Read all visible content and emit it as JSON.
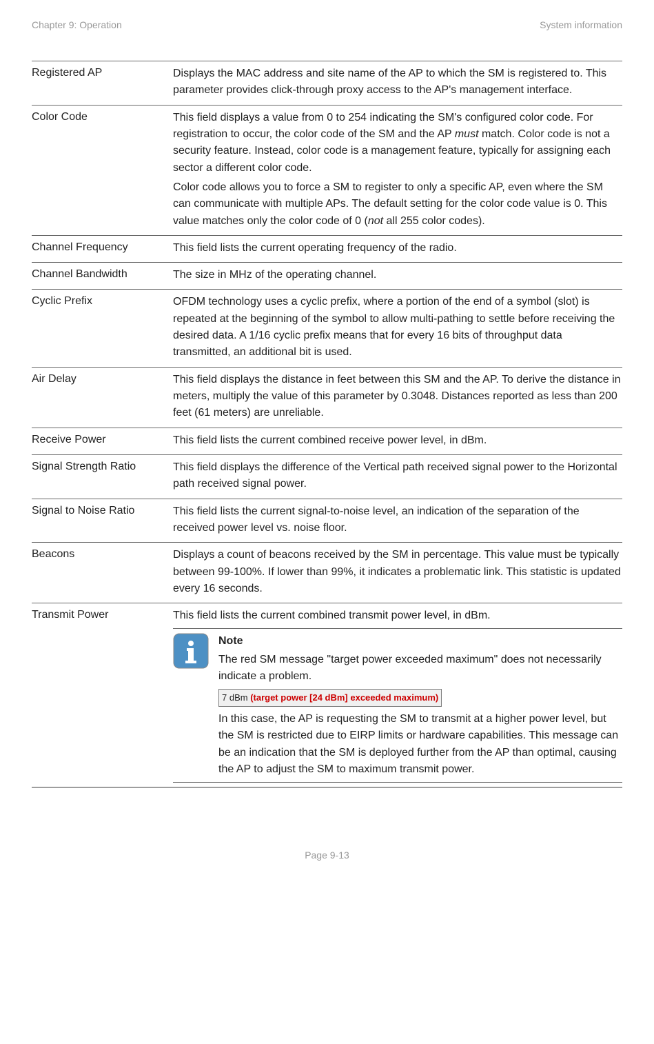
{
  "header": {
    "left": "Chapter 9:  Operation",
    "right": "System information"
  },
  "rows": [
    {
      "label": "Registered AP",
      "desc": "Displays the MAC address and site name of the AP to which the SM is registered to. This parameter provides click-through proxy access to the AP's management interface."
    },
    {
      "label": "Color Code",
      "desc_html": "This field displays a value from 0 to 254 indicating the SM's configured color code. For registration to occur, the color code of the SM and the AP <span class=\"italic\">must</span> match. Color code is not a security feature. Instead, color code is a management feature, typically for assigning each sector a different color code.",
      "desc2_html": "Color code allows you to force a SM to register to only a specific AP, even where the SM can communicate with multiple APs. The default setting for the color code value is 0. This value matches only the color code of 0 (<span class=\"italic\">not</span> all 255 color codes)."
    },
    {
      "label": "Channel Frequency",
      "desc": "This field lists the current operating frequency of the radio."
    },
    {
      "label": "Channel Bandwidth",
      "desc": "The size in MHz of the operating channel."
    },
    {
      "label": "Cyclic Prefix",
      "desc": "OFDM technology uses a cyclic prefix, where a portion of the end of a symbol (slot) is repeated at the beginning of the symbol to allow multi-pathing to settle before receiving the desired data. A 1/16 cyclic prefix means that for every 16 bits of throughput data transmitted, an additional bit is used."
    },
    {
      "label": "Air Delay",
      "desc": "This field displays the distance in feet between this SM and the AP. To derive the distance in meters, multiply the value of this parameter by 0.3048. Distances reported as less than 200 feet (61 meters) are unreliable."
    },
    {
      "label": "Receive Power",
      "desc": "This field lists the current combined receive power level, in dBm."
    },
    {
      "label": "Signal Strength Ratio",
      "desc": "This field displays the difference of the Vertical path received signal power to the Horizontal path received signal power."
    },
    {
      "label": "Signal to Noise Ratio",
      "desc": "This field lists the current signal-to-noise level, an indication of the separation of the received power level vs. noise floor."
    },
    {
      "label": "Beacons",
      "desc": "Displays a count of beacons received by the SM in percentage. This value must be typically between 99-100%. If lower than 99%, it indicates a problematic link. This statistic is updated every 16 seconds."
    },
    {
      "label": "Transmit Power",
      "desc": "This field lists the current combined transmit power level, in dBm.",
      "note": {
        "title": "Note",
        "text1": "The red SM message \"target power exceeded maximum\" does not necessarily indicate a problem.",
        "img_black": "7 dBm ",
        "img_red": "(target power [24 dBm] exceeded maximum)",
        "text2": "In this case, the AP is requesting the SM to transmit at a higher power level, but the SM is restricted due to EIRP limits or hardware capabilities.  This message can be an indication that the SM is deployed further from the AP than optimal, causing the AP to adjust the SM to maximum transmit power."
      }
    }
  ],
  "footer": "Page 9-13",
  "colors": {
    "header_text": "#999999",
    "body_text": "#222222",
    "border": "#666666",
    "red": "#cc0000",
    "icon_bg": "#4d90c4",
    "icon_border": "#7d7d7d"
  }
}
